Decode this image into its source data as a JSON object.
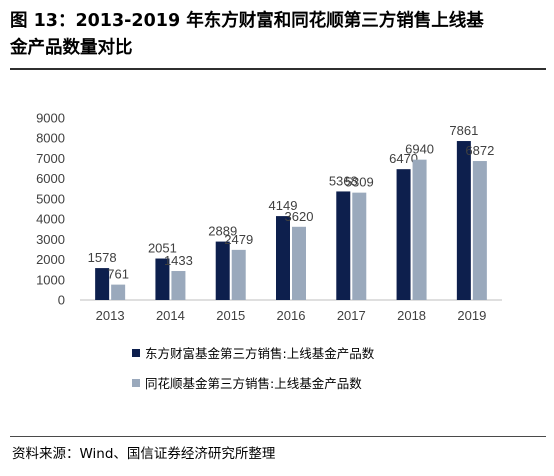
{
  "header": {
    "title_line1": "图 13：2013-2019 年东方财富和同花顺第三方销售上线基",
    "title_line2": "金产品数量对比"
  },
  "colors": {
    "series1": "#0d1f4d",
    "series2": "#9aa9bc"
  },
  "chart_data": {
    "type": "bar",
    "title": "",
    "xlabel": "",
    "ylabel": "",
    "categories": [
      "2013",
      "2014",
      "2015",
      "2016",
      "2017",
      "2018",
      "2019"
    ],
    "series": [
      {
        "name": "东方财富基金第三方销售:上线基金产品数",
        "values": [
          1578,
          2051,
          2889,
          4149,
          5368,
          6470,
          7861
        ],
        "labels": [
          "1578",
          "2051",
          "2889",
          "4149",
          "5368",
          "6470",
          "7861"
        ]
      },
      {
        "name": "同花顺基金第三方销售:上线基金产品数",
        "values": [
          761,
          1433,
          2479,
          3620,
          5309,
          6940,
          6872
        ],
        "labels": [
          "761",
          "1433",
          "2479",
          "3620",
          "5309",
          "6940",
          "6872"
        ]
      }
    ],
    "ylim": [
      0,
      9000
    ],
    "yticks": [
      "0",
      "1000",
      "2000",
      "3000",
      "4000",
      "5000",
      "6000",
      "7000",
      "8000",
      "9000"
    ],
    "grid": false,
    "legend_position": "bottom"
  },
  "footer": {
    "source": "资料来源：Wind、国信证券经济研究所整理"
  }
}
